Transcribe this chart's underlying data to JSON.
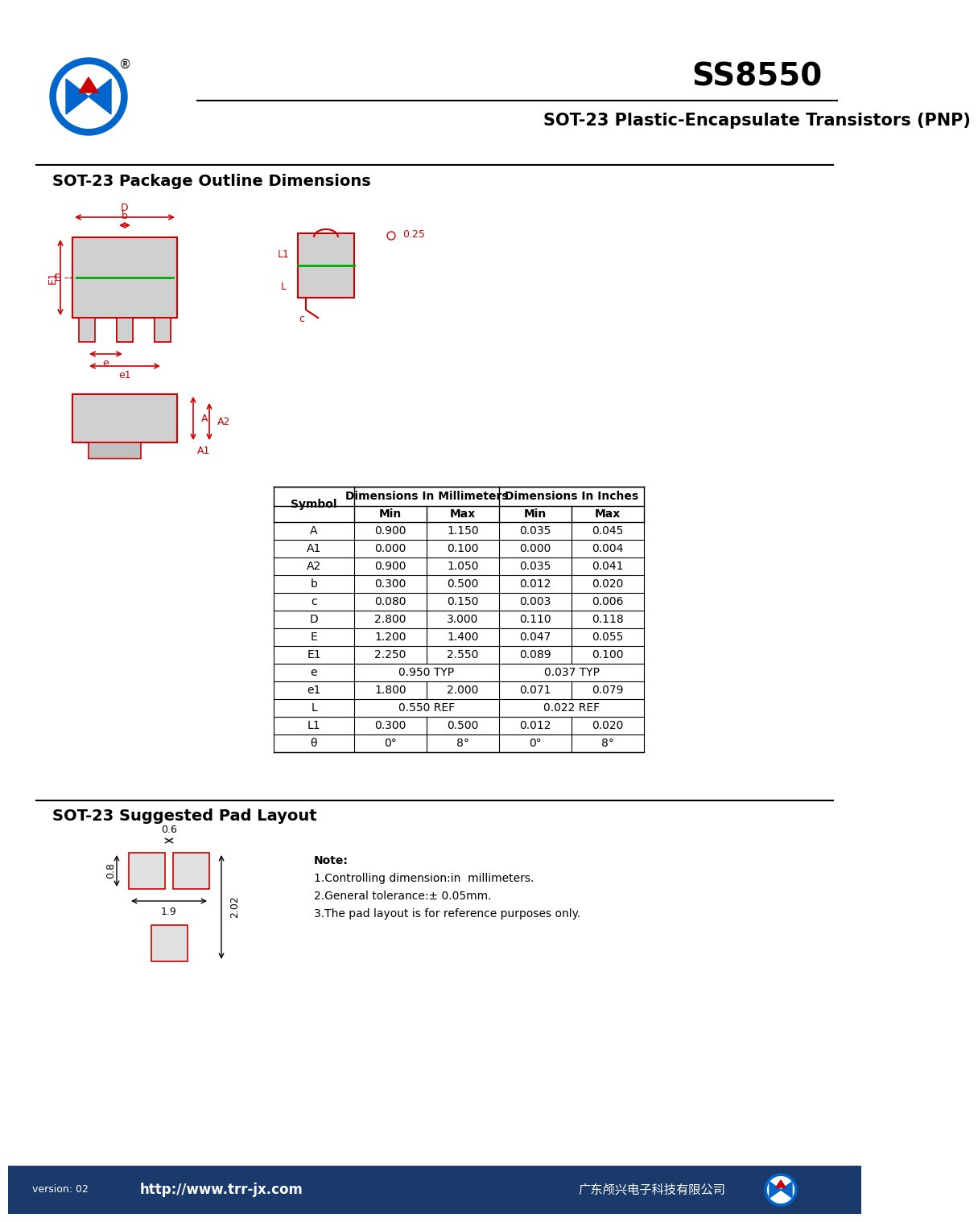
{
  "title": "SS8550",
  "subtitle": "SOT-23 Plastic-Encapsulate Transistors (PNP)",
  "section1_title": "SOT-23 Package Outline Dimensions",
  "section2_title": "SOT-23 Suggested Pad Layout",
  "table_headers": [
    "Symbol",
    "Dimensions In Millimeters",
    "Dimensions In Inches"
  ],
  "table_subheaders": [
    "Min",
    "Max",
    "Min",
    "Max"
  ],
  "table_data": [
    [
      "A",
      "0.900",
      "1.150",
      "0.035",
      "0.045"
    ],
    [
      "A1",
      "0.000",
      "0.100",
      "0.000",
      "0.004"
    ],
    [
      "A2",
      "0.900",
      "1.050",
      "0.035",
      "0.041"
    ],
    [
      "b",
      "0.300",
      "0.500",
      "0.012",
      "0.020"
    ],
    [
      "c",
      "0.080",
      "0.150",
      "0.003",
      "0.006"
    ],
    [
      "D",
      "2.800",
      "3.000",
      "0.110",
      "0.118"
    ],
    [
      "E",
      "1.200",
      "1.400",
      "0.047",
      "0.055"
    ],
    [
      "E1",
      "2.250",
      "2.550",
      "0.089",
      "0.100"
    ],
    [
      "e",
      "0.950 TYP",
      "",
      "0.037 TYP",
      ""
    ],
    [
      "e1",
      "1.800",
      "2.000",
      "0.071",
      "0.079"
    ],
    [
      "L",
      "0.550 REF",
      "",
      "0.022 REF",
      ""
    ],
    [
      "L1",
      "0.300",
      "0.500",
      "0.012",
      "0.020"
    ],
    [
      "θ",
      "0°",
      "8°",
      "0°",
      "8°"
    ]
  ],
  "note_lines": [
    "Note:",
    "1.Controlling dimension:in  millimeters.",
    "2.General tolerance:± 0.05mm.",
    "3.The pad layout is for reference purposes only."
  ],
  "website": "http://www.trr-jx.com",
  "company": "广东颅兴电子科技有限公司",
  "version": "version: 02",
  "bg_color": "#ffffff",
  "red": "#cc0000",
  "green": "#00aa00",
  "blue": "#0066cc",
  "dark": "#222222",
  "footer_bg": "#1a3a6b",
  "footer_text": "#ffffff"
}
